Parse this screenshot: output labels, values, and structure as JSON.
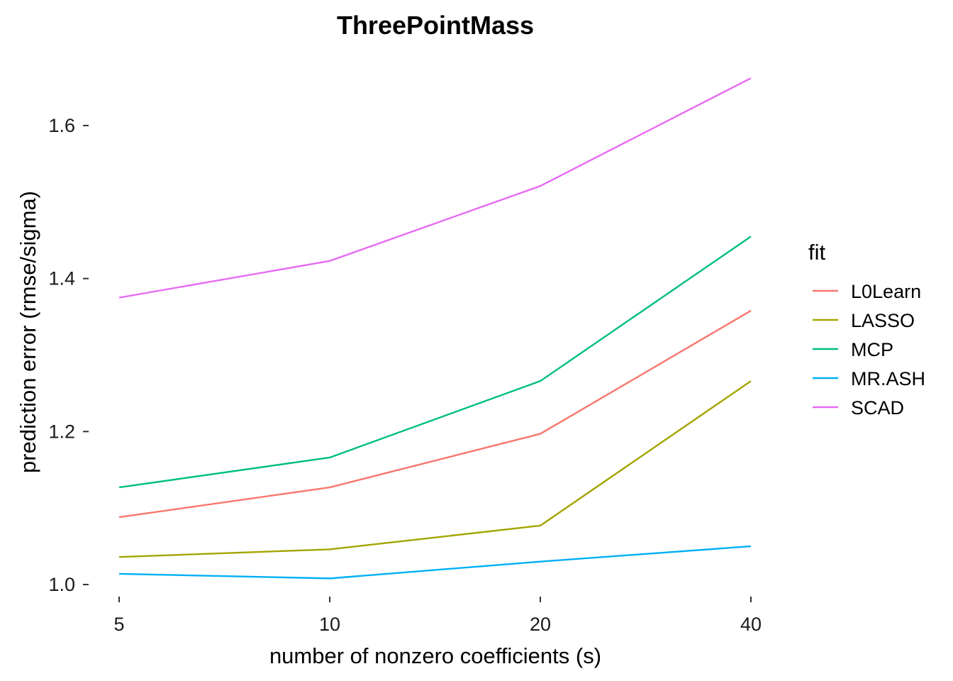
{
  "chart_data": {
    "type": "line",
    "title": "ThreePointMass",
    "xlabel": "number of nonzero coefficients (s)",
    "ylabel": "prediction error (rmse/sigma)",
    "x_scale": "log",
    "x": [
      5,
      10,
      20,
      40
    ],
    "x_tick_labels": [
      "5",
      "10",
      "20",
      "40"
    ],
    "y_ticks": [
      1.0,
      1.2,
      1.4,
      1.6
    ],
    "y_tick_labels": [
      "1.0",
      "1.2",
      "1.4",
      "1.6"
    ],
    "ylim": [
      0.98,
      1.68
    ],
    "grid": false,
    "legend": {
      "title": "fit",
      "position": "right"
    },
    "series": [
      {
        "name": "L0Learn",
        "color": "#F8766D",
        "values": [
          1.088,
          1.127,
          1.197,
          1.358
        ]
      },
      {
        "name": "LASSO",
        "color": "#A3A500",
        "values": [
          1.036,
          1.046,
          1.077,
          1.266
        ]
      },
      {
        "name": "MCP",
        "color": "#00BF7D",
        "values": [
          1.127,
          1.166,
          1.266,
          1.455
        ]
      },
      {
        "name": "MR.ASH",
        "color": "#00B0F6",
        "values": [
          1.014,
          1.008,
          1.03,
          1.05
        ]
      },
      {
        "name": "SCAD",
        "color": "#E76BF3",
        "values": [
          1.375,
          1.423,
          1.521,
          1.662
        ]
      }
    ]
  }
}
